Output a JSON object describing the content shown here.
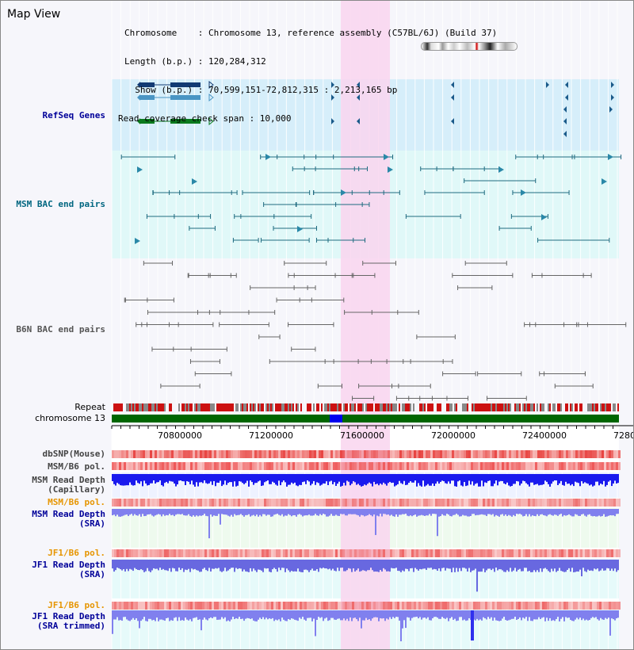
{
  "view_title": "Map View",
  "header": {
    "chromosome": "Chromosome    : Chromosome 13, reference assembly (C57BL/6J) (Build 37)",
    "length": "Length (b.p.) : 120,284,312",
    "show": "  Show (b.p.) : 70,599,151-72,812,315 : 2,213,165 bp",
    "coverage": "Read coverage check span : 10,000"
  },
  "tracks": {
    "refseq": "RefSeq Genes",
    "msm_bac": "MSM BAC end pairs",
    "b6n_bac": "B6N BAC end pairs",
    "repeat": "Repeat",
    "chromosome": "chromosome 13",
    "dbsnp": "dbSNP(Mouse)",
    "msm_b6_pol_1": "MSM/B6 pol.",
    "msm_depth_cap_1": "MSM Read Depth",
    "msm_depth_cap_2": "(Capillary)",
    "msm_b6_pol_2": "MSM/B6 pol.",
    "msm_depth_sra_1": "MSM Read Depth",
    "msm_depth_sra_2": "(SRA)",
    "jf1_b6_pol_1": "JF1/B6 pol.",
    "jf1_depth_sra_1": "JF1 Read Depth",
    "jf1_depth_sra_2": "(SRA)",
    "jf1_b6_pol_2": "JF1/B6 pol.",
    "jf1_depth_trim_1": "JF1 Read Depth",
    "jf1_depth_trim_2": "(SRA trimmed)"
  },
  "axis": {
    "ticks": [
      "70800000",
      "71200000",
      "71600000",
      "72000000",
      "72400000",
      "7280"
    ]
  },
  "colors": {
    "refseq_bg": "#d6eefa",
    "bac_bg": "#e0f8f8",
    "highlight": "#f9d5ee",
    "label_blue": "#000099",
    "label_teal": "#006680",
    "label_orange": "#e69500",
    "chrom_green": "#006600",
    "chrom_highlight": "#0000ee"
  }
}
